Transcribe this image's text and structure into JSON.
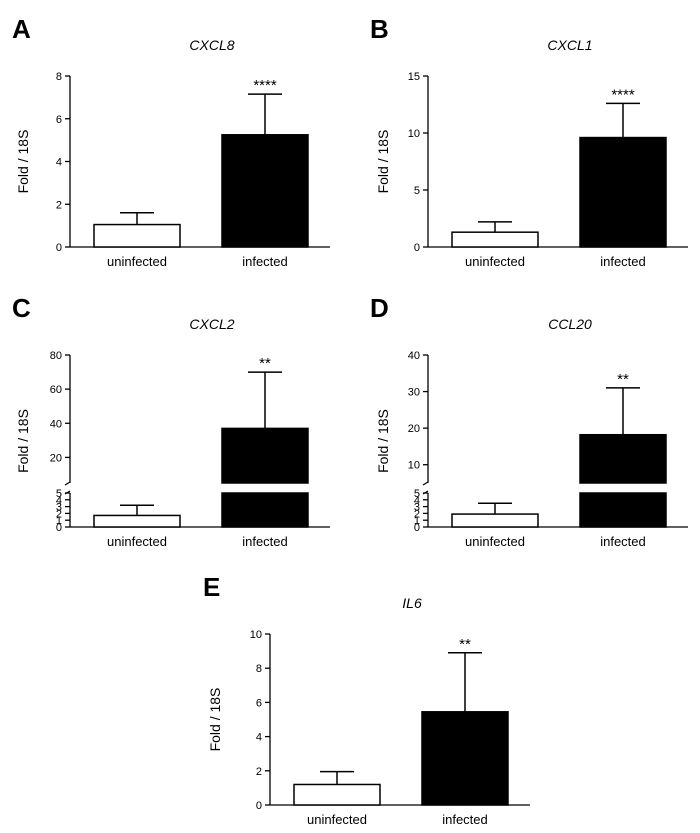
{
  "chart_data": [
    {
      "panel": "A",
      "type": "bar",
      "title": "CXCL8",
      "ylabel": "Fold / 18S",
      "xlabel": "",
      "categories": [
        "uninfected",
        "infected"
      ],
      "values": [
        1.05,
        5.25
      ],
      "errors": [
        0.55,
        1.9
      ],
      "fills": [
        "#ffffff",
        "#000000"
      ],
      "significance": [
        "",
        "****"
      ],
      "ylim": [
        0,
        8
      ],
      "yticks": [
        0,
        2,
        4,
        6,
        8
      ]
    },
    {
      "panel": "B",
      "type": "bar",
      "title": "CXCL1",
      "ylabel": "Fold / 18S",
      "xlabel": "",
      "categories": [
        "uninfected",
        "infected"
      ],
      "values": [
        1.3,
        9.6
      ],
      "errors": [
        0.9,
        3.0
      ],
      "fills": [
        "#ffffff",
        "#000000"
      ],
      "significance": [
        "",
        "****"
      ],
      "ylim": [
        0,
        15
      ],
      "yticks": [
        0,
        5,
        10,
        15
      ]
    },
    {
      "panel": "C",
      "type": "bar",
      "title": "CXCL2",
      "ylabel": "Fold / 18S",
      "xlabel": "",
      "categories": [
        "uninfected",
        "infected"
      ],
      "values": [
        1.7,
        37
      ],
      "errors": [
        1.5,
        33
      ],
      "fills": [
        "#ffffff",
        "#000000"
      ],
      "significance": [
        "",
        "**"
      ],
      "broken_axis": true,
      "lower_range": [
        0,
        5
      ],
      "upper_range": [
        5,
        80
      ],
      "lower_ticks": [
        0,
        1,
        2,
        3,
        4,
        5
      ],
      "lower_tick_labels": [
        "0",
        "1",
        "2",
        "3",
        "4",
        "5"
      ],
      "upper_ticks": [
        20,
        40,
        60,
        80
      ]
    },
    {
      "panel": "D",
      "type": "bar",
      "title": "CCL20",
      "ylabel": "Fold / 18S",
      "xlabel": "",
      "categories": [
        "uninfected",
        "infected"
      ],
      "values": [
        1.9,
        18.2
      ],
      "errors": [
        1.6,
        12.8
      ],
      "fills": [
        "#ffffff",
        "#000000"
      ],
      "significance": [
        "",
        "**"
      ],
      "broken_axis": true,
      "lower_range": [
        0,
        5
      ],
      "upper_range": [
        5,
        40
      ],
      "lower_ticks": [
        0,
        1,
        2,
        3,
        4,
        5
      ],
      "lower_tick_labels": [
        "0",
        "1",
        "2",
        "3",
        "4",
        "5"
      ],
      "upper_ticks": [
        10,
        20,
        30,
        40
      ]
    },
    {
      "panel": "E",
      "type": "bar",
      "title": "IL6",
      "ylabel": "Fold / 18S",
      "xlabel": "",
      "categories": [
        "uninfected",
        "infected"
      ],
      "values": [
        1.2,
        5.45
      ],
      "errors": [
        0.75,
        3.45
      ],
      "fills": [
        "#ffffff",
        "#000000"
      ],
      "significance": [
        "",
        "**"
      ],
      "ylim": [
        0,
        10
      ],
      "yticks": [
        0,
        2,
        4,
        6,
        8,
        10
      ]
    }
  ]
}
